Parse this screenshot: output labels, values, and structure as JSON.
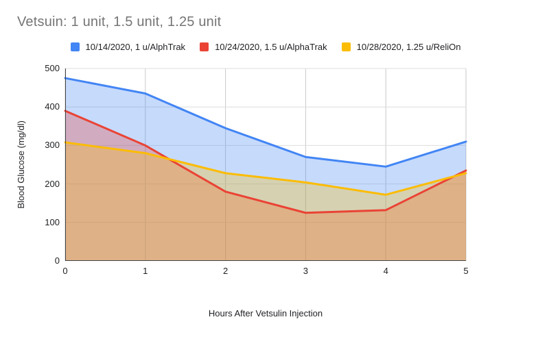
{
  "title": "Vetsuin: 1 unit, 1.5 unit, 1.25 unit",
  "title_color": "#757575",
  "chart_data": {
    "type": "area",
    "title": "Vetsuin: 1 unit, 1.5 unit, 1.25 unit",
    "xlabel": "Hours After Vetsulin Injection",
    "ylabel": "Blood Glucose (mg/dl)",
    "x": [
      0,
      1,
      2,
      3,
      4,
      5
    ],
    "xlim": [
      0,
      5
    ],
    "ylim": [
      0,
      500
    ],
    "x_ticks": [
      0,
      1,
      2,
      3,
      4,
      5
    ],
    "y_ticks": [
      0,
      100,
      200,
      300,
      400,
      500
    ],
    "grid": true,
    "legend_position": "top",
    "fill_opacity": 0.3,
    "line_width": 3,
    "axis_color": "#424242",
    "vertical_gridline_color": "#c9c9c9",
    "horizontal_gridline_color": "#dedede",
    "series": [
      {
        "name": "10/14/2020, 1 u/AlphTrak",
        "color": "#4285F4",
        "values": [
          475,
          435,
          345,
          270,
          245,
          310
        ]
      },
      {
        "name": "10/24/2020, 1.5 u/AlphaTrak",
        "color": "#EA4335",
        "values": [
          390,
          300,
          180,
          125,
          132,
          235
        ]
      },
      {
        "name": "10/28/2020, 1.25 u/ReliOn",
        "color": "#FBBC04",
        "values": [
          308,
          280,
          228,
          204,
          172,
          228
        ]
      }
    ]
  }
}
